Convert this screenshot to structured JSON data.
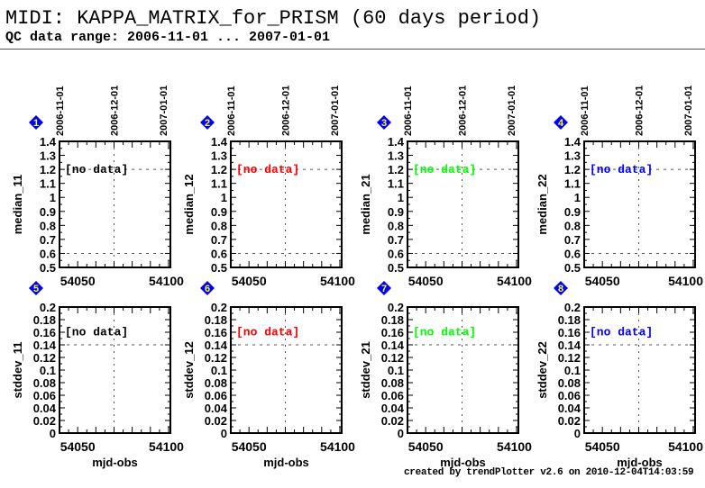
{
  "header": {
    "title": "MIDI: KAPPA_MATRIX_for_PRISM (60 days period)",
    "subtitle": "QC data range: 2006-11-01 ... 2007-01-01"
  },
  "footer": "created by trendPlotter v2.6 on 2010-12-04T14:03:59",
  "chart_data": [
    {
      "type": "scatter",
      "id": "1",
      "ylabel": "median_11",
      "xlabel": "",
      "ylim": [
        0.5,
        1.4
      ],
      "yticks": [
        "0.5",
        "0.6",
        "0.7",
        "0.8",
        "0.9",
        "1",
        "1.1",
        "1.2",
        "1.3",
        "1.4"
      ],
      "ref_lines": [
        0.6,
        1.2
      ],
      "note": "[no data]",
      "note_color": "#000000",
      "x": [],
      "y": []
    },
    {
      "type": "scatter",
      "id": "2",
      "ylabel": "median_12",
      "xlabel": "",
      "ylim": [
        0.5,
        1.4
      ],
      "yticks": [
        "0.5",
        "0.6",
        "0.7",
        "0.8",
        "0.9",
        "1",
        "1.1",
        "1.2",
        "1.3",
        "1.4"
      ],
      "ref_lines": [
        0.6,
        1.2
      ],
      "note": "[no data]",
      "note_color": "#ff0000",
      "x": [],
      "y": []
    },
    {
      "type": "scatter",
      "id": "3",
      "ylabel": "median_21",
      "xlabel": "",
      "ylim": [
        0.5,
        1.4
      ],
      "yticks": [
        "0.5",
        "0.6",
        "0.7",
        "0.8",
        "0.9",
        "1",
        "1.1",
        "1.2",
        "1.3",
        "1.4"
      ],
      "ref_lines": [
        0.6,
        1.2
      ],
      "note": "[no data]",
      "note_color": "#00ff00",
      "x": [],
      "y": []
    },
    {
      "type": "scatter",
      "id": "4",
      "ylabel": "median_22",
      "xlabel": "",
      "ylim": [
        0.5,
        1.4
      ],
      "yticks": [
        "0.5",
        "0.6",
        "0.7",
        "0.8",
        "0.9",
        "1",
        "1.1",
        "1.2",
        "1.3",
        "1.4"
      ],
      "ref_lines": [
        0.6,
        1.2
      ],
      "note": "[no data]",
      "note_color": "#0000ff",
      "x": [],
      "y": []
    },
    {
      "type": "scatter",
      "id": "5",
      "ylabel": "stddev_11",
      "xlabel": "mjd-obs",
      "ylim": [
        0,
        0.2
      ],
      "yticks": [
        "0",
        "0.02",
        "0.04",
        "0.06",
        "0.08",
        "0.1",
        "0.12",
        "0.14",
        "0.16",
        "0.18",
        "0.2"
      ],
      "ref_lines": [
        0.14
      ],
      "note": "[no data]",
      "note_color": "#000000",
      "x": [],
      "y": []
    },
    {
      "type": "scatter",
      "id": "6",
      "ylabel": "stddev_12",
      "xlabel": "mjd-obs",
      "ylim": [
        0,
        0.2
      ],
      "yticks": [
        "0",
        "0.02",
        "0.04",
        "0.06",
        "0.08",
        "0.1",
        "0.12",
        "0.14",
        "0.16",
        "0.18",
        "0.2"
      ],
      "ref_lines": [
        0.14
      ],
      "note": "[no data]",
      "note_color": "#ff0000",
      "x": [],
      "y": []
    },
    {
      "type": "scatter",
      "id": "7",
      "ylabel": "stddev_21",
      "xlabel": "mjd-obs",
      "ylim": [
        0,
        0.2
      ],
      "yticks": [
        "0",
        "0.02",
        "0.04",
        "0.06",
        "0.08",
        "0.1",
        "0.12",
        "0.14",
        "0.16",
        "0.18",
        "0.2"
      ],
      "ref_lines": [
        0.14
      ],
      "note": "[no data]",
      "note_color": "#00ff00",
      "x": [],
      "y": []
    },
    {
      "type": "scatter",
      "id": "8",
      "ylabel": "stddev_22",
      "xlabel": "mjd-obs",
      "ylim": [
        0,
        0.2
      ],
      "yticks": [
        "0",
        "0.02",
        "0.04",
        "0.06",
        "0.08",
        "0.1",
        "0.12",
        "0.14",
        "0.16",
        "0.18",
        "0.2"
      ],
      "ref_lines": [
        0.14
      ],
      "note": "[no data]",
      "note_color": "#0000ff",
      "x": [],
      "y": []
    }
  ],
  "x_axis": {
    "xlim": [
      54040,
      54101
    ],
    "ticks": [
      {
        "v": 54050,
        "label": "54050"
      },
      {
        "v": 54100,
        "label": "54100"
      }
    ],
    "date_ticks": [
      {
        "v": 54040,
        "label": "2006-11-01"
      },
      {
        "v": 54070,
        "label": "2006-12-01"
      },
      {
        "v": 54101,
        "label": "2007-01-01"
      }
    ],
    "ref_line": 54070
  },
  "colors": {
    "marker_fill": "#0000ff",
    "marker_text": "#ffff00"
  }
}
